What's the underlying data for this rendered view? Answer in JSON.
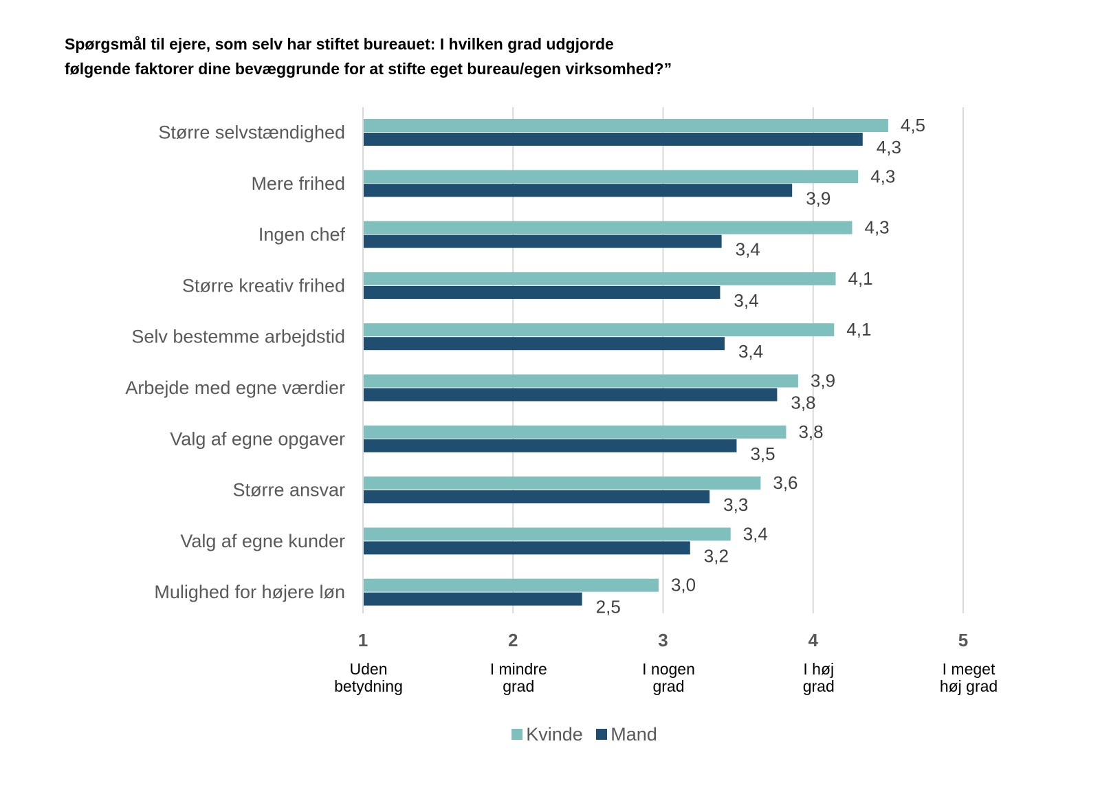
{
  "chart_data": {
    "type": "bar",
    "orientation": "horizontal",
    "title": [
      "Spørgsmål til ejere, som selv har stiftet bureauet: I hvilken grad udgjorde",
      "følgende faktorer dine bevæggrunde for at stifte eget bureau/egen virksomhed?”"
    ],
    "categories": [
      "Større selvstændighed",
      "Mere frihed",
      "Ingen chef",
      "Større kreativ frihed",
      "Selv bestemme arbejdstid",
      "Arbejde med egne værdier",
      "Valg af egne opgaver",
      "Større ansvar",
      "Valg af egne kunder",
      "Mulighed for højere løn"
    ],
    "series": [
      {
        "name": "Kvinde",
        "color": "#7fbfbe",
        "values": [
          4.5,
          4.3,
          4.26,
          4.15,
          4.14,
          3.9,
          3.82,
          3.65,
          3.45,
          2.97
        ],
        "labels": [
          "4,5",
          "4,3",
          "4,3",
          "4,1",
          "4,1",
          "3,9",
          "3,8",
          "3,6",
          "3,4",
          "3,0"
        ]
      },
      {
        "name": "Mand",
        "color": "#1f4e71",
        "values": [
          4.33,
          3.86,
          3.39,
          3.38,
          3.41,
          3.76,
          3.49,
          3.31,
          3.18,
          2.46
        ],
        "labels": [
          "4,3",
          "3,9",
          "3,4",
          "3,4",
          "3,4",
          "3,8",
          "3,5",
          "3,3",
          "3,2",
          "2,5"
        ]
      }
    ],
    "xlim": [
      1,
      5
    ],
    "xticks": [
      {
        "value": 1,
        "label": "1",
        "sublabel": [
          "Uden",
          "betydning"
        ]
      },
      {
        "value": 2,
        "label": "2",
        "sublabel": [
          "I mindre",
          "grad"
        ]
      },
      {
        "value": 3,
        "label": "3",
        "sublabel": [
          "I nogen",
          "grad"
        ]
      },
      {
        "value": 4,
        "label": "4",
        "sublabel": [
          "I høj",
          "grad"
        ]
      },
      {
        "value": 5,
        "label": "5",
        "sublabel": [
          "I meget",
          "høj grad"
        ]
      }
    ],
    "grid": true,
    "legend_position": "bottom"
  }
}
